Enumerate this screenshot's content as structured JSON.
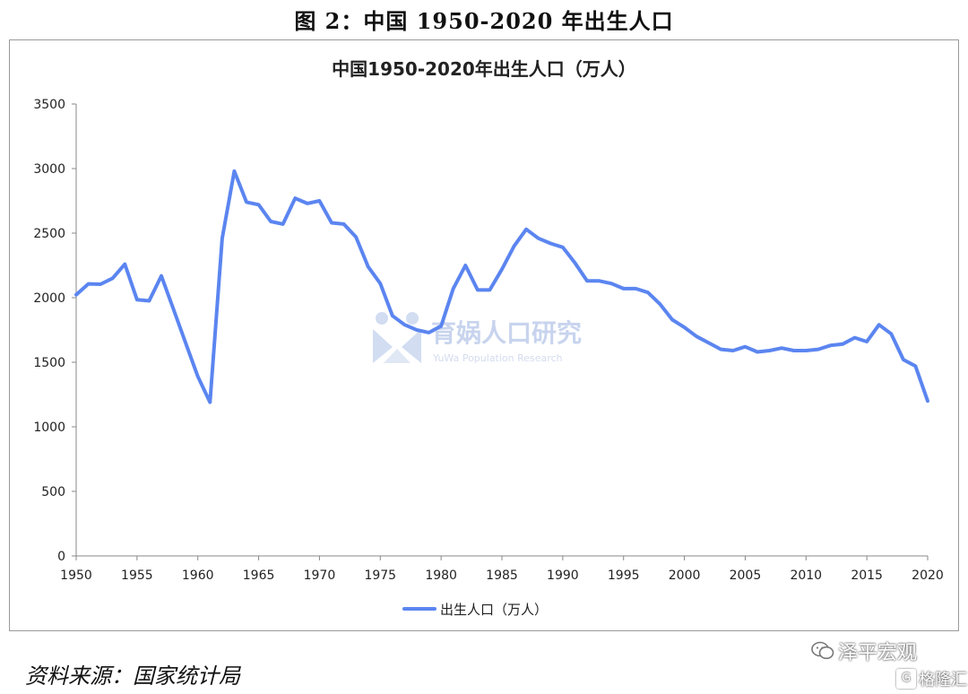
{
  "caption": "图 2：中国 1950-2020 年出生人口",
  "source": "资料来源：国家统计局",
  "watermark": {
    "title": "育娲人口研究",
    "subtitle": "YuWa Population Research"
  },
  "brand": {
    "zeping": "泽平宏观",
    "gelonghui": "格隆汇",
    "zeping_icon": "wechat-icon",
    "gelonghui_icon": "g-logo-icon"
  },
  "chart_data": {
    "type": "line",
    "title": "中国1950-2020年出生人口（万人）",
    "xlabel": "",
    "ylabel": "",
    "xlim": [
      1950,
      2020
    ],
    "ylim": [
      0,
      3500
    ],
    "y_ticks": [
      0,
      500,
      1000,
      1500,
      2000,
      2500,
      3000,
      3500
    ],
    "x_ticks": [
      1950,
      1955,
      1960,
      1965,
      1970,
      1975,
      1980,
      1985,
      1990,
      1995,
      2000,
      2005,
      2010,
      2015,
      2020
    ],
    "grid": false,
    "legend_position": "bottom",
    "line_color": "#5b85f0",
    "series": [
      {
        "name": "出生人口（万人）",
        "x": [
          1950,
          1951,
          1952,
          1953,
          1954,
          1955,
          1956,
          1957,
          1958,
          1959,
          1960,
          1961,
          1962,
          1963,
          1964,
          1965,
          1966,
          1967,
          1968,
          1969,
          1970,
          1971,
          1972,
          1973,
          1974,
          1975,
          1976,
          1977,
          1978,
          1979,
          1980,
          1981,
          1982,
          1983,
          1984,
          1985,
          1986,
          1987,
          1988,
          1989,
          1990,
          1991,
          1992,
          1993,
          1994,
          1995,
          1996,
          1997,
          1998,
          1999,
          2000,
          2001,
          2002,
          2003,
          2004,
          2005,
          2006,
          2007,
          2008,
          2009,
          2010,
          2011,
          2012,
          2013,
          2014,
          2015,
          2016,
          2017,
          2018,
          2019,
          2020
        ],
        "values": [
          2023,
          2107,
          2104,
          2151,
          2260,
          1984,
          1976,
          2169,
          1910,
          1650,
          1390,
          1190,
          2460,
          2980,
          2740,
          2720,
          2590,
          2570,
          2770,
          2730,
          2750,
          2580,
          2570,
          2470,
          2240,
          2110,
          1860,
          1790,
          1750,
          1730,
          1780,
          2070,
          2250,
          2060,
          2060,
          2220,
          2400,
          2530,
          2460,
          2420,
          2390,
          2270,
          2130,
          2130,
          2110,
          2070,
          2070,
          2040,
          1950,
          1830,
          1770,
          1700,
          1650,
          1600,
          1590,
          1620,
          1580,
          1590,
          1610,
          1590,
          1590,
          1600,
          1630,
          1640,
          1690,
          1660,
          1790,
          1720,
          1520,
          1470,
          1200
        ]
      }
    ]
  }
}
